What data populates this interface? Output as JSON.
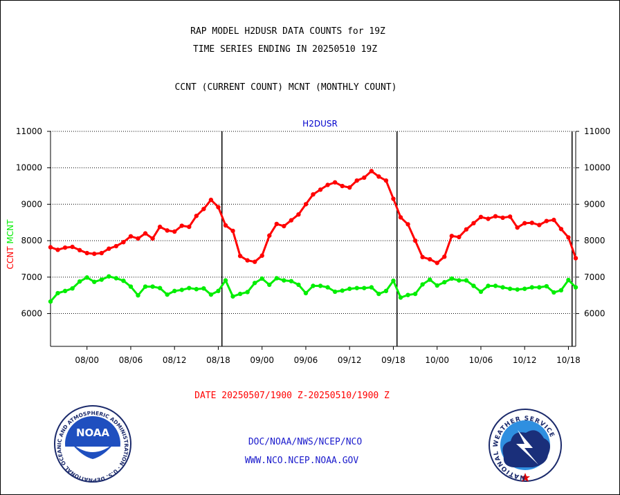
{
  "header": {
    "title_line1": "RAP MODEL H2DUSR DATA COUNTS for 19Z",
    "title_line2": "TIME SERIES ENDING IN 20250510 19Z",
    "subtitle": "CCNT (CURRENT COUNT) MCNT (MONTHLY COUNT)"
  },
  "footer": {
    "date_range": "DATE 20250507/1900 Z-20250510/1900 Z",
    "org_path": "DOC/NOAA/NWS/NCEP/NCO",
    "website": "WWW.NCO.NCEP.NOAA.GOV"
  },
  "logos": {
    "noaa_word": "NOAA",
    "noaa_ring_text": "NATIONAL OCEANIC AND ATMOSPHERIC ADMINISTRATION · U.S. DEPARTMENT OF COMMERCE ·",
    "nws_ring_text": "NATIONAL WEATHER SERVICE"
  },
  "colors": {
    "ccnt": "#ff0000",
    "mcnt": "#00ee00",
    "panel_title": "#0000cc",
    "date_text": "#ff0000",
    "footer_text": "#1a1acc"
  },
  "chart_data": {
    "type": "line",
    "title": "H2DUSR",
    "ylabel_left": [
      {
        "text": "CCNT",
        "color": "#ff0000"
      },
      {
        "text": "MCNT",
        "color": "#00ee00"
      }
    ],
    "ylim": [
      5100,
      11000
    ],
    "yticks": [
      6000,
      7000,
      8000,
      9000,
      10000,
      11000
    ],
    "grid_y": [
      6000,
      7000,
      8000,
      9000,
      10000,
      11000
    ],
    "x": {
      "start_label": "07/19",
      "end_label": "10/19",
      "count": 73
    },
    "xticks": [
      {
        "index": 5,
        "label": "08/00"
      },
      {
        "index": 11,
        "label": "08/06"
      },
      {
        "index": 17,
        "label": "08/12"
      },
      {
        "index": 23,
        "label": "08/18"
      },
      {
        "index": 29,
        "label": "09/00"
      },
      {
        "index": 35,
        "label": "09/06"
      },
      {
        "index": 41,
        "label": "09/12"
      },
      {
        "index": 47,
        "label": "09/18"
      },
      {
        "index": 53,
        "label": "10/00"
      },
      {
        "index": 59,
        "label": "10/06"
      },
      {
        "index": 65,
        "label": "10/12"
      },
      {
        "index": 71,
        "label": "10/18"
      }
    ],
    "day_boundaries": [
      23.5,
      47.5,
      71.5
    ],
    "series": [
      {
        "name": "CCNT",
        "color": "#ff0000",
        "values": [
          7820,
          7750,
          7810,
          7830,
          7740,
          7660,
          7640,
          7660,
          7780,
          7850,
          7960,
          8120,
          8060,
          8200,
          8060,
          8380,
          8280,
          8250,
          8410,
          8380,
          8680,
          8870,
          9120,
          8920,
          8420,
          8270,
          7580,
          7460,
          7420,
          7590,
          8140,
          8460,
          8400,
          8560,
          8720,
          9000,
          9270,
          9400,
          9530,
          9600,
          9500,
          9460,
          9650,
          9730,
          9910,
          9760,
          9650,
          9150,
          8640,
          8450,
          8000,
          7550,
          7490,
          7390,
          7560,
          8130,
          8100,
          8310,
          8480,
          8650,
          8600,
          8670,
          8630,
          8660,
          8360,
          8480,
          8490,
          8430,
          8540,
          8570,
          8320,
          8090,
          7520
        ]
      },
      {
        "name": "MCNT",
        "color": "#00ee00",
        "values": [
          6330,
          6560,
          6620,
          6690,
          6880,
          6990,
          6870,
          6930,
          7020,
          6970,
          6900,
          6740,
          6500,
          6740,
          6740,
          6700,
          6520,
          6620,
          6650,
          6700,
          6670,
          6690,
          6520,
          6620,
          6910,
          6470,
          6540,
          6590,
          6840,
          6960,
          6790,
          6970,
          6910,
          6890,
          6790,
          6560,
          6760,
          6760,
          6720,
          6600,
          6630,
          6680,
          6700,
          6700,
          6720,
          6540,
          6620,
          6900,
          6440,
          6510,
          6540,
          6800,
          6930,
          6770,
          6860,
          6960,
          6910,
          6910,
          6760,
          6600,
          6760,
          6760,
          6720,
          6680,
          6660,
          6680,
          6720,
          6720,
          6750,
          6580,
          6640,
          6920,
          6720
        ]
      }
    ]
  }
}
